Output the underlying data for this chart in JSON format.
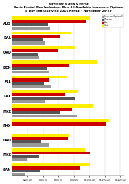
{
  "title_lines": [
    "Silvercar v Avis v Hertz",
    "Basic Rental Plus Inclusions Plus All Available Insurance Options",
    "4 Day Thanksgiving 2015 Rental - November 25-29"
  ],
  "cat_labels": [
    "AUS",
    "DAL",
    "ORD",
    "DEN",
    "FLL",
    "LAX",
    "MKE",
    "PHX",
    "ORD",
    "MKE",
    "SAN"
  ],
  "series": [
    {
      "name": "Silvercar (Optional)",
      "color": "#999999"
    },
    {
      "name": "Silvercar",
      "color": "#555555"
    },
    {
      "name": "Avis",
      "color": "#cc0000"
    },
    {
      "name": "Hertz",
      "color": "#ffee00"
    }
  ],
  "data": [
    [
      487.3,
      464.74,
      960.45,
      1010.05
    ],
    [
      428.44,
      400.12,
      618.29,
      770.42
    ],
    [
      348.44,
      340.74,
      600.28,
      808.53
    ],
    [
      480.23,
      448.52,
      732.88,
      1097.87
    ],
    [
      506.01,
      412.18,
      479.81,
      708.08
    ],
    [
      426.78,
      818.0,
      688.87,
      846.21
    ],
    [
      836.3,
      613.0,
      773.73,
      1048.04
    ],
    [
      0,
      0,
      1209.02,
      1250.4
    ],
    [
      484.84,
      374.47,
      718.18,
      727.24
    ],
    [
      201.08,
      344.84,
      1003.3,
      944.8
    ],
    [
      174.64,
      364.44,
      880.14,
      1007.21
    ]
  ],
  "xlim": [
    0,
    1450
  ],
  "xtick_values": [
    200,
    400,
    600,
    800,
    1000,
    1200,
    1400
  ],
  "xtick_labels": [
    "$200.00",
    "$400.00",
    "$600.00",
    "$800.00",
    "$1,000.00",
    "$1,200.00",
    "$1,400.00"
  ],
  "background_color": "#ffffff"
}
